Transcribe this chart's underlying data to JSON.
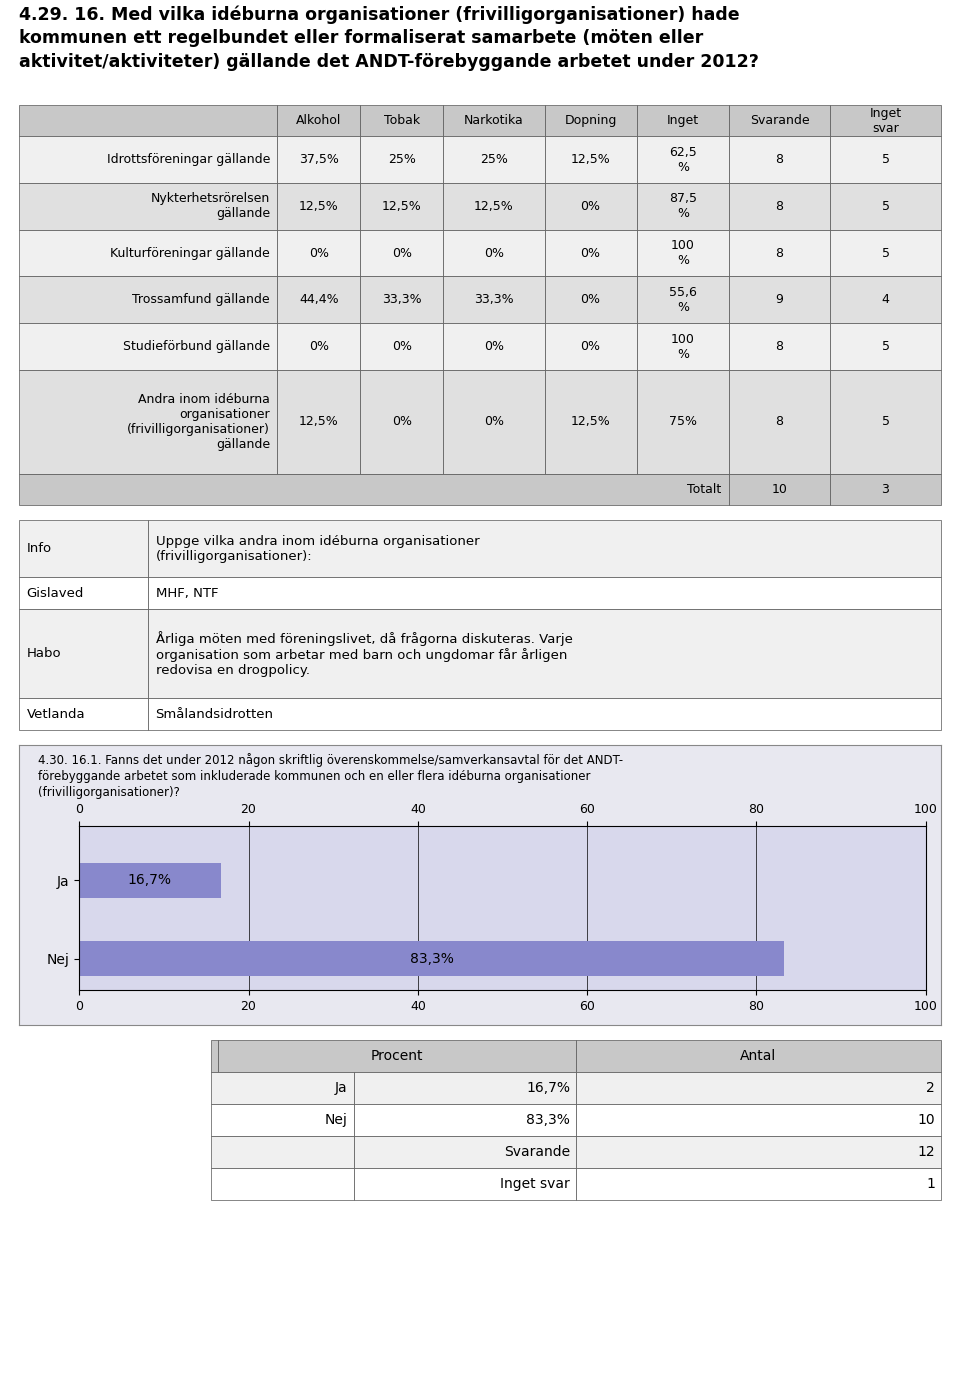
{
  "title_lines": [
    "4.29. 16. Med vilka idéburna organisationer (frivilligorganisationer) hade",
    "kommunen ett regelbundet eller formaliserat samarbete (möten eller",
    "aktivitet/aktiviteter) gällande det ANDT-förebyggande arbetet under 2012?"
  ],
  "table1_headers": [
    "Alkohol",
    "Tobak",
    "Narkotika",
    "Dopning",
    "Inget",
    "Svarande",
    "Inget\nsvar"
  ],
  "table1_rows": [
    [
      "Idrottsföreningar gällande",
      "37,5%",
      "25%",
      "25%",
      "12,5%",
      "62,5\n%",
      "8",
      "5"
    ],
    [
      "Nykterhetsrörelsen\ngällande",
      "12,5%",
      "12,5%",
      "12,5%",
      "0%",
      "87,5\n%",
      "8",
      "5"
    ],
    [
      "Kulturföreningar gällande",
      "0%",
      "0%",
      "0%",
      "0%",
      "100\n%",
      "8",
      "5"
    ],
    [
      "Trossamfund gällande",
      "44,4%",
      "33,3%",
      "33,3%",
      "0%",
      "55,6\n%",
      "9",
      "4"
    ],
    [
      "Studieförbund gällande",
      "0%",
      "0%",
      "0%",
      "0%",
      "100\n%",
      "8",
      "5"
    ],
    [
      "Andra inom idéburna\norganisationer\n(frivilligorganisationer)\ngällande",
      "12,5%",
      "0%",
      "0%",
      "12,5%",
      "75%",
      "8",
      "5"
    ]
  ],
  "totalt_label": "Totalt",
  "totalt_svarande": "10",
  "totalt_inget_svar": "3",
  "info_table": [
    [
      "Info",
      "Uppge vilka andra inom idéburna organisationer\n(frivilligorganisationer):"
    ],
    [
      "Gislaved",
      "MHF, NTF"
    ],
    [
      "Habo",
      "Årliga möten med föreningslivet, då frågorna diskuteras. Varje\norganisation som arbetar med barn och ungdomar får årligen\nredovisa en drogpolicy."
    ],
    [
      "Vetlanda",
      "Smålandsidrotten"
    ]
  ],
  "chart_title_lines": [
    "4.30. 16.1. Fanns det under 2012 någon skriftlig överenskommelse/samverkansavtal för det ANDT-",
    "förebyggande arbetet som inkluderade kommunen och en eller flera idéburna organisationer",
    "(frivilligorganisationer)?"
  ],
  "chart_categories": [
    "Ja",
    "Nej"
  ],
  "chart_values": [
    16.7,
    83.3
  ],
  "chart_bar_color": "#8888cc",
  "chart_bg_color": "#d8d8ec",
  "chart_outer_bg": "#e8e8f0",
  "chart_xlim": [
    0,
    100
  ],
  "chart_xticks": [
    0,
    20,
    40,
    60,
    80,
    100
  ],
  "table2_rows": [
    [
      "Ja",
      "16,7%",
      "2"
    ],
    [
      "Nej",
      "83,3%",
      "10"
    ],
    [
      "",
      "Svarande",
      "12"
    ],
    [
      "",
      "Inget svar",
      "1"
    ]
  ],
  "header_bg": "#c8c8c8",
  "row_bg_even": "#f0f0f0",
  "row_bg_odd": "#e0e0e0",
  "row_bg_white": "#ffffff",
  "border_color": "#888888",
  "text_color": "#000000",
  "fig_w": 9.6,
  "fig_h": 13.8,
  "dpi": 100
}
